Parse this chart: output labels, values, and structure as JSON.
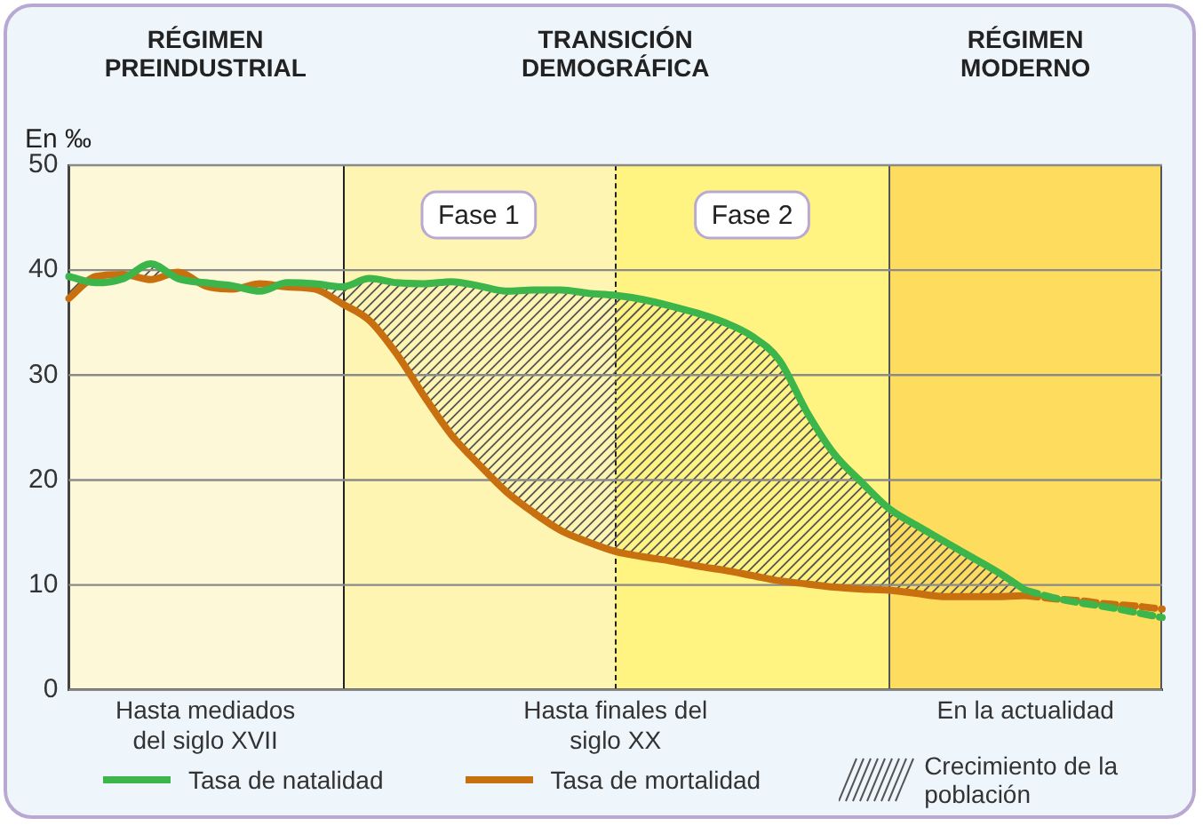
{
  "chart_data": {
    "type": "line",
    "ylabel": "En ‰",
    "categories": [
      null,
      null,
      null,
      null,
      null,
      "Hasta mediados del siglo XVII",
      null,
      null,
      null,
      null,
      null,
      null,
      null,
      null,
      null,
      null,
      null,
      null,
      null,
      null,
      "Hasta finales del siglo XX",
      null,
      null,
      null,
      null,
      null,
      null,
      null,
      null,
      null,
      null,
      null,
      null,
      null,
      null,
      "En la actualidad",
      null,
      null,
      null,
      null,
      null
    ],
    "ylim": [
      0,
      50
    ],
    "yticks": [
      0,
      10,
      20,
      30,
      40,
      50
    ],
    "grid": "y",
    "legend": "bottom",
    "marker": "none",
    "annotations": [
      "RÉGIMEN PREINDUSTRIAL",
      "TRANSICIÓN DEMOGRÁFICA",
      "RÉGIMEN MODERNO",
      "Fase 1",
      "Fase 2",
      "Crecimiento de la población"
    ],
    "series": [
      {
        "name": "Tasa de natalidad",
        "color": "#3cb54a",
        "line_style": "solid",
        "values": [
          39.4,
          38.8,
          39.2,
          40.6,
          39.2,
          38.8,
          38.5,
          38.0,
          38.8,
          38.7,
          38.4,
          39.2,
          38.8,
          38.7,
          38.9,
          38.5,
          38.0,
          38.1,
          38.1,
          37.8,
          37.6,
          37.2,
          36.6,
          35.9,
          35.0,
          33.7,
          31.4,
          26.5,
          22.5,
          19.8,
          17.3,
          15.7,
          14.2,
          12.7,
          11.2,
          9.5,
          null,
          null,
          null,
          null,
          null
        ]
      },
      {
        "name": "Tasa de mortalidad",
        "color": "#c8700f",
        "line_style": "solid",
        "values": [
          37.3,
          39.4,
          39.6,
          39.1,
          39.8,
          38.5,
          38.2,
          38.7,
          38.4,
          38.2,
          36.8,
          35.2,
          32.0,
          28.0,
          24.3,
          21.5,
          18.9,
          16.9,
          15.2,
          14.1,
          13.2,
          12.7,
          12.3,
          11.8,
          11.4,
          10.9,
          10.4,
          10.1,
          9.8,
          9.6,
          9.5,
          9.2,
          8.9,
          8.9,
          8.9,
          9.0,
          null,
          null,
          null,
          null,
          null
        ]
      },
      {
        "color": "#3cb54a",
        "line_style": "dashed",
        "values": [
          null,
          null,
          null,
          null,
          null,
          null,
          null,
          null,
          null,
          null,
          null,
          null,
          null,
          null,
          null,
          null,
          null,
          null,
          null,
          null,
          null,
          null,
          null,
          null,
          null,
          null,
          null,
          null,
          null,
          null,
          null,
          null,
          null,
          null,
          null,
          9.5,
          8.8,
          8.3,
          7.9,
          7.4,
          6.9
        ]
      },
      {
        "color": "#c8700f",
        "line_style": "dashed",
        "values": [
          null,
          null,
          null,
          null,
          null,
          null,
          null,
          null,
          null,
          null,
          null,
          null,
          null,
          null,
          null,
          null,
          null,
          null,
          null,
          null,
          null,
          null,
          null,
          null,
          null,
          null,
          null,
          null,
          null,
          null,
          null,
          null,
          null,
          null,
          null,
          9.0,
          8.7,
          8.5,
          8.2,
          8.0,
          7.7
        ]
      }
    ]
  }
}
